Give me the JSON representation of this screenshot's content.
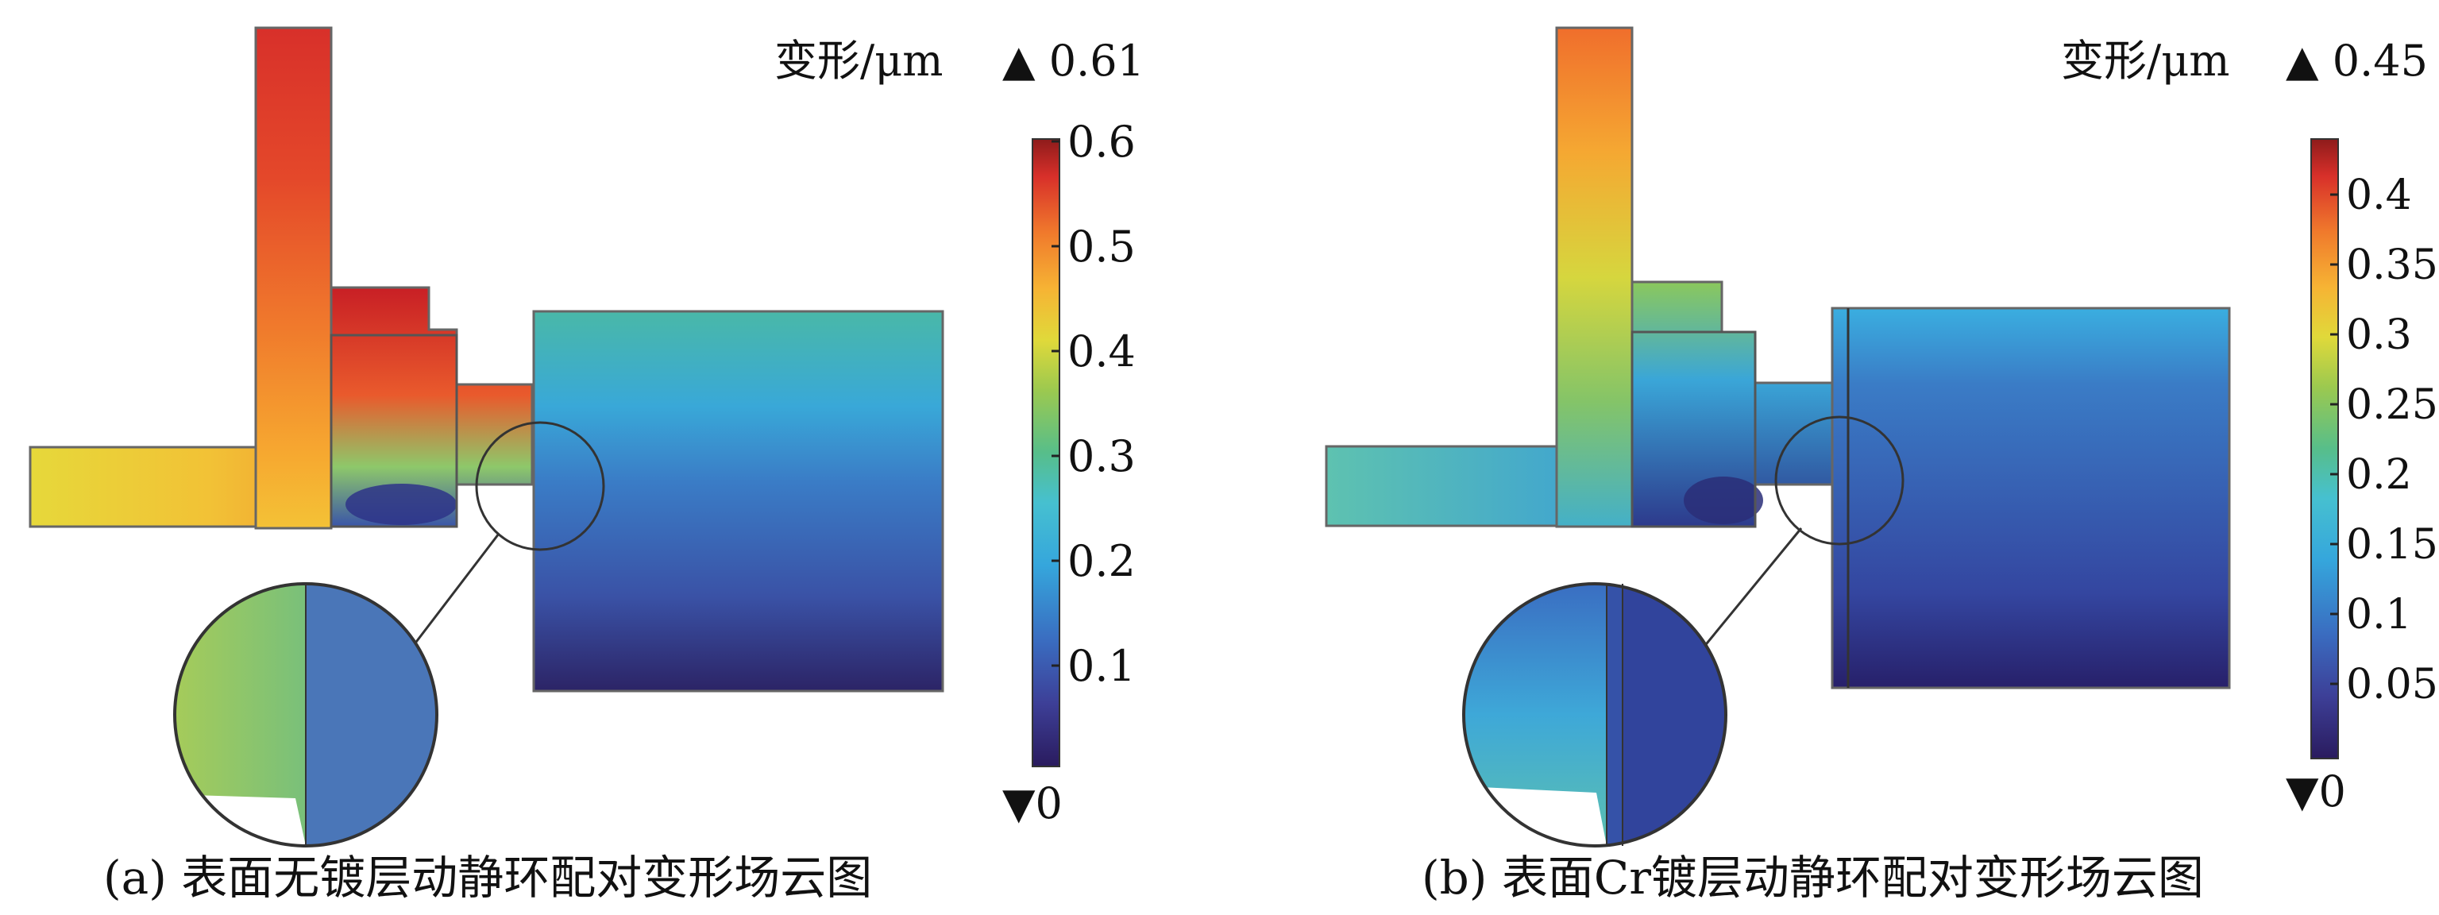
{
  "panels": [
    {
      "id": "a",
      "unit_label": "变形/μm",
      "max_label": "0.61",
      "min_label": "0",
      "ticks": [
        "0.6",
        "0.5",
        "0.4",
        "0.3",
        "0.2",
        "0.1"
      ],
      "caption": "(a) 表面无镀层动静环配对变形场云图"
    },
    {
      "id": "b",
      "unit_label": "变形/μm",
      "max_label": "0.45",
      "min_label": "0",
      "ticks": [
        "0.4",
        "0.35",
        "0.3",
        "0.25",
        "0.2",
        "0.15",
        "0.1",
        "0.05"
      ],
      "caption": "(b) 表面Cr镀层动静环配对变形场云图"
    }
  ],
  "colormap": [
    "#2a1b5e",
    "#3d3f97",
    "#3a6cc0",
    "#35a6dc",
    "#46c0d0",
    "#57be8a",
    "#9cc94f",
    "#e0d93a",
    "#f6b434",
    "#f07a2c",
    "#d8302a",
    "#8e1b1b"
  ]
}
